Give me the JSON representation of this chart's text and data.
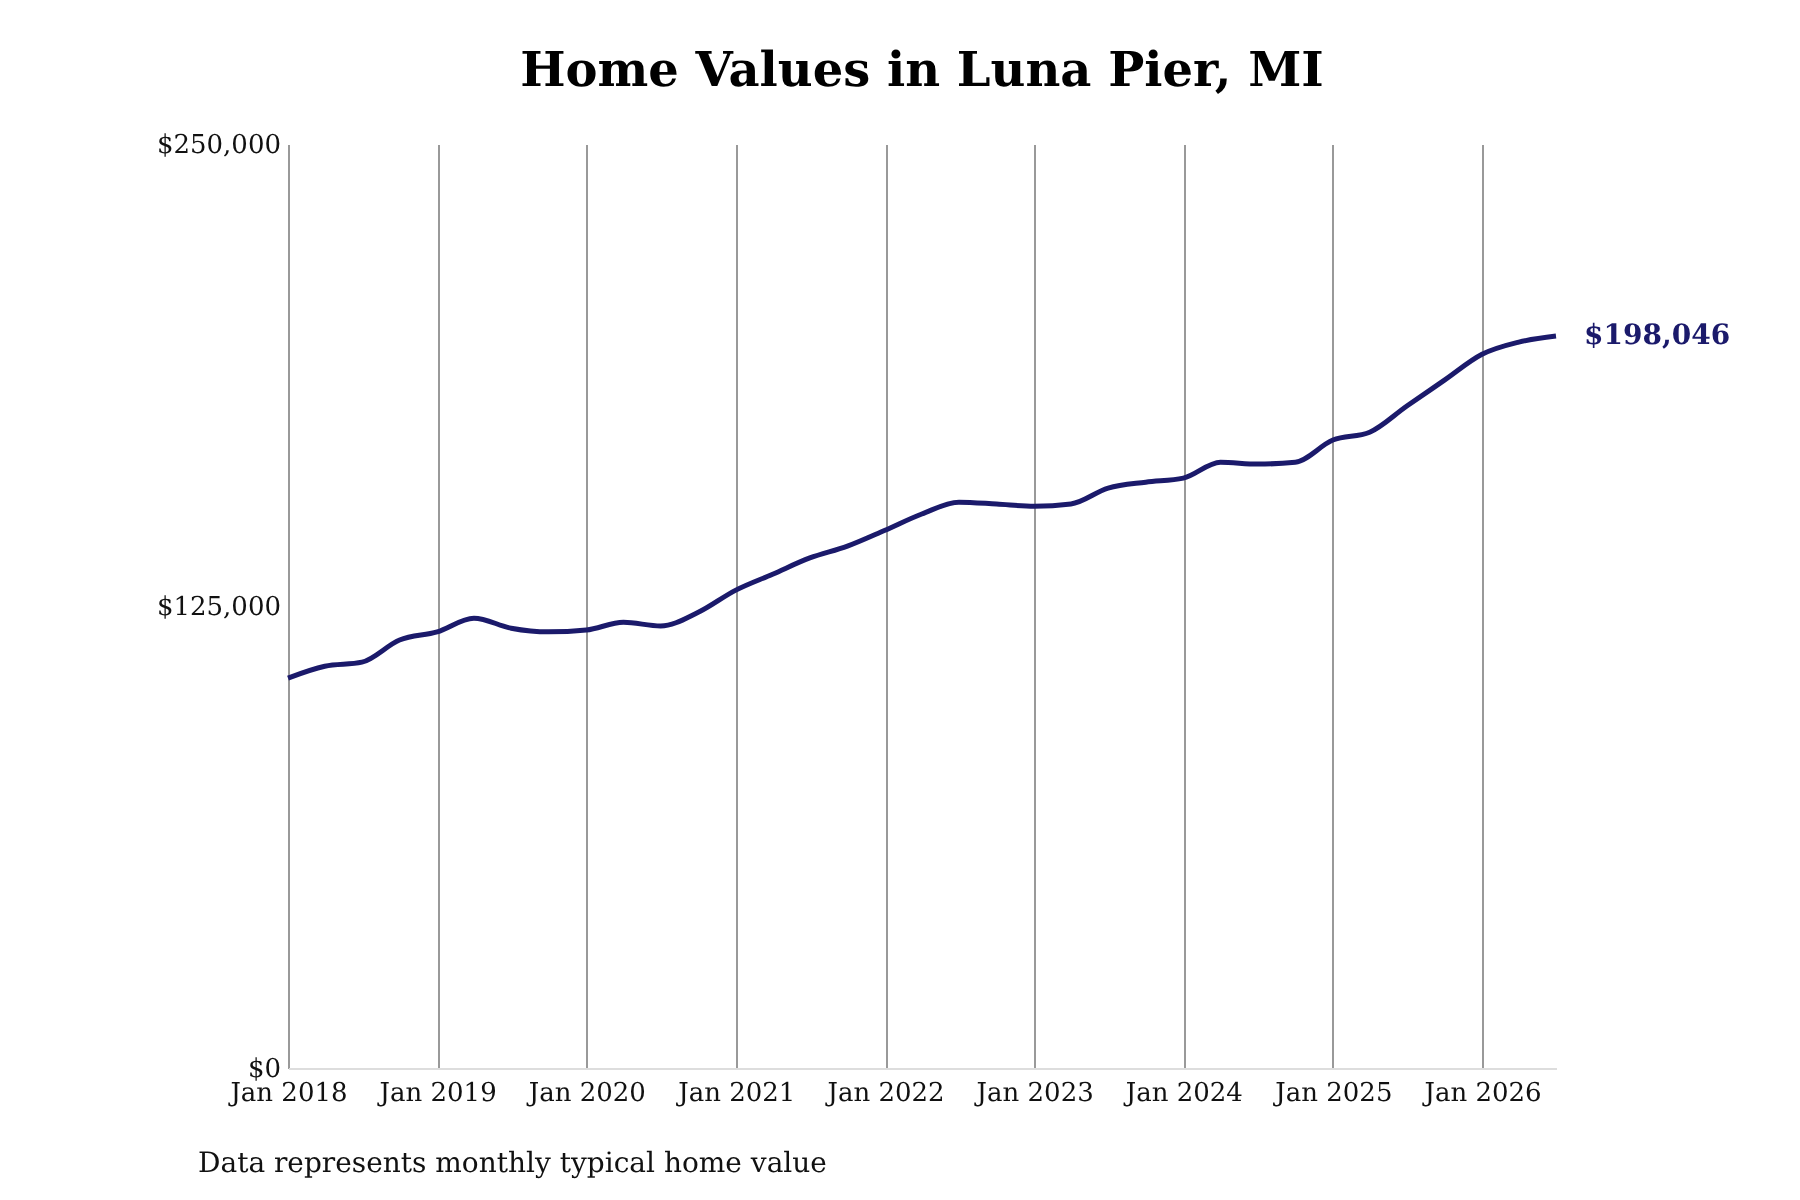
{
  "chart_data": {
    "type": "line",
    "title": "Home Values in Luna Pier, MI",
    "x": [
      "2018-01",
      "2018-04",
      "2018-07",
      "2018-10",
      "2019-01",
      "2019-04",
      "2019-07",
      "2019-10",
      "2020-01",
      "2020-04",
      "2020-07",
      "2020-10",
      "2021-01",
      "2021-04",
      "2021-07",
      "2021-10",
      "2022-01",
      "2022-04",
      "2022-07",
      "2022-10",
      "2023-01",
      "2023-04",
      "2023-07",
      "2023-10",
      "2024-01",
      "2024-04",
      "2024-07",
      "2024-10",
      "2025-01",
      "2025-04",
      "2025-07",
      "2025-10",
      "2026-01",
      "2026-04",
      "2026-07"
    ],
    "series": [
      {
        "color": "#1b1a6b",
        "values": [
          105500,
          108700,
          109800,
          115800,
          118000,
          121700,
          119000,
          118000,
          118500,
          120600,
          119600,
          123300,
          129300,
          133600,
          138000,
          141200,
          145500,
          149900,
          153100,
          152600,
          152000,
          152600,
          156900,
          158500,
          159600,
          163900,
          163400,
          163900,
          169900,
          172000,
          179100,
          186100,
          193100,
          196400,
          198046
        ]
      }
    ],
    "xticks": [
      {
        "value": "2018-01",
        "label": "Jan 2018"
      },
      {
        "value": "2019-01",
        "label": "Jan 2019"
      },
      {
        "value": "2020-01",
        "label": "Jan 2020"
      },
      {
        "value": "2021-01",
        "label": "Jan 2021"
      },
      {
        "value": "2022-01",
        "label": "Jan 2022"
      },
      {
        "value": "2023-01",
        "label": "Jan 2023"
      },
      {
        "value": "2024-01",
        "label": "Jan 2024"
      },
      {
        "value": "2025-01",
        "label": "Jan 2025"
      },
      {
        "value": "2026-01",
        "label": "Jan 2026"
      }
    ],
    "xlim": [
      "2018-01",
      "2026-07"
    ],
    "ylim": [
      0,
      250000
    ],
    "yticks": [
      {
        "value": 0,
        "label": "$0"
      },
      {
        "value": 125000,
        "label": "$125,000"
      },
      {
        "value": 250000,
        "label": "$250,000"
      }
    ],
    "grid": "x",
    "annotations": [
      {
        "text": "$198,046",
        "x": "2026-07",
        "y": 198046
      },
      "Data represents monthly typical home value"
    ]
  }
}
